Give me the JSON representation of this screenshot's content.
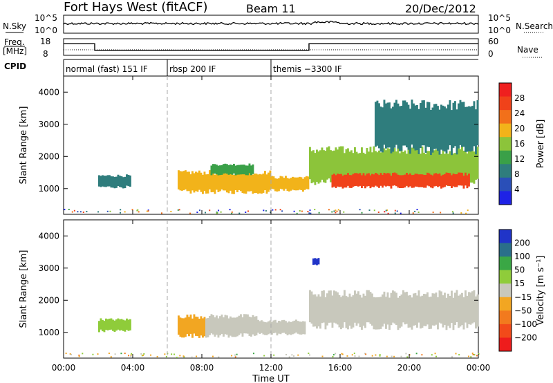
{
  "header": {
    "title": "Fort Hays West (fitACF)",
    "beam": "Beam 11",
    "date": "20/Dec/2012"
  },
  "strips": {
    "nsky_label": "N.Sky",
    "nsky_ticks": [
      "10^5",
      "10^0"
    ],
    "nsearch_label": "N.Search",
    "nsearch_ticks": [
      "10^5",
      "10^0"
    ],
    "freq_label_1": "Freq.",
    "freq_label_2": "[MHz]",
    "freq_ticks": [
      "18",
      "8"
    ],
    "nave_label": "Nave",
    "nave_ticks": [
      "60",
      "0"
    ],
    "cpid_label": "CPID",
    "cpid_segments": [
      {
        "start": 0.0,
        "end": 6.0,
        "label": "normal (fast) 151 IF"
      },
      {
        "start": 6.0,
        "end": 12.0,
        "label": "rbsp 200 IF"
      },
      {
        "start": 12.0,
        "end": 24.0,
        "label": "themis −3300 IF"
      }
    ],
    "freq_steps": [
      {
        "start": 0.0,
        "end": 1.8,
        "value": 15
      },
      {
        "start": 1.8,
        "end": 14.2,
        "value": 11
      },
      {
        "start": 14.2,
        "end": 24.0,
        "value": 15
      }
    ]
  },
  "colors": {
    "power_scale": [
      "#1e22e6",
      "#2a4fb8",
      "#2f7d7d",
      "#3aa048",
      "#8cc43a",
      "#f2b31a",
      "#f2701a",
      "#f0421a",
      "#ef1f1f"
    ],
    "velocity_scale": [
      "#ee1c1c",
      "#f24a1a",
      "#f27a1e",
      "#f2a622",
      "#c8c8bc",
      "#8fcc3a",
      "#3aa745",
      "#2a6f8a",
      "#2034c8"
    ],
    "ground_scatter": "#c8c8bc"
  },
  "chart_data": [
    {
      "type": "heatmap",
      "panel": "power",
      "xlabel": "",
      "ylabel": "Slant Range [km]",
      "xlim": [
        0,
        24
      ],
      "ylim": [
        200,
        4500
      ],
      "yticks": [
        "1000",
        "2000",
        "3000",
        "4000"
      ],
      "colorbar": {
        "label": "Power [dB]",
        "ticks": [
          "28",
          "24",
          "20",
          "16",
          "12",
          "8",
          "4"
        ],
        "range": [
          0,
          30
        ]
      },
      "regions": [
        {
          "t0": 2.0,
          "t1": 3.9,
          "r0": 1050,
          "r1": 1400,
          "level": 7
        },
        {
          "t0": 6.6,
          "t1": 12.0,
          "r0": 900,
          "r1": 1500,
          "level": 18
        },
        {
          "t0": 8.5,
          "t1": 11.0,
          "r0": 1450,
          "r1": 1750,
          "level": 11
        },
        {
          "t0": 12.0,
          "t1": 14.2,
          "r0": 950,
          "r1": 1350,
          "level": 17
        },
        {
          "t0": 14.2,
          "t1": 24.0,
          "r0": 1200,
          "r1": 2200,
          "level": 14
        },
        {
          "t0": 15.5,
          "t1": 23.5,
          "r0": 1050,
          "r1": 1450,
          "level": 25
        },
        {
          "t0": 18.0,
          "t1": 24.0,
          "r0": 2200,
          "r1": 3600,
          "level": 8
        }
      ]
    },
    {
      "type": "heatmap",
      "panel": "velocity",
      "xlabel": "Time UT",
      "ylabel": "Slant Range [km]",
      "xlim": [
        0,
        24
      ],
      "ylim": [
        200,
        4500
      ],
      "xticks": [
        "00:00",
        "04:00",
        "08:00",
        "12:00",
        "16:00",
        "20:00",
        "00:00"
      ],
      "yticks": [
        "1000",
        "2000",
        "3000",
        "4000"
      ],
      "colorbar": {
        "label": "Velocity [m s⁻¹]",
        "ticks": [
          "200",
          "100",
          "50",
          "15",
          "−15",
          "−50",
          "−100",
          "−200"
        ],
        "range": [
          -250,
          250
        ]
      },
      "regions": [
        {
          "t0": 2.0,
          "t1": 3.9,
          "r0": 1050,
          "r1": 1400,
          "value": 30
        },
        {
          "t0": 6.6,
          "t1": 8.2,
          "r0": 900,
          "r1": 1500,
          "value": -70
        },
        {
          "t0": 8.2,
          "t1": 11.2,
          "r0": 900,
          "r1": 1500,
          "value": 0
        },
        {
          "t0": 11.2,
          "t1": 14.0,
          "r0": 950,
          "r1": 1350,
          "value": 25
        },
        {
          "t0": 14.2,
          "t1": 24.0,
          "r0": 1200,
          "r1": 2200,
          "value": 0
        },
        {
          "t0": 14.4,
          "t1": 14.8,
          "r0": 3100,
          "r1": 3300,
          "value": 220
        }
      ]
    }
  ]
}
